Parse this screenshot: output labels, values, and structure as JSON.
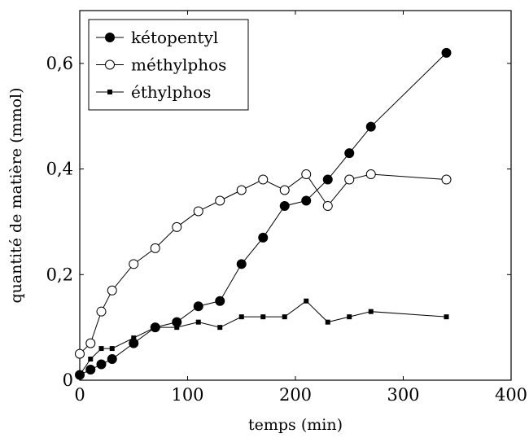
{
  "chart_data": {
    "type": "line",
    "title": "",
    "xlabel": "temps (min)",
    "ylabel": "quantité de matière (mmol)",
    "xlim": [
      0,
      400
    ],
    "ylim": [
      0,
      0.7
    ],
    "x_ticks": [
      0,
      100,
      200,
      300,
      400
    ],
    "y_ticks": [
      0,
      0.2,
      0.4,
      0.6
    ],
    "x_tick_labels": [
      "0",
      "100",
      "200",
      "300",
      "400"
    ],
    "y_tick_labels": [
      "0",
      "0,2",
      "0,4",
      "0,6"
    ],
    "grid": false,
    "legend_position": "top-left",
    "series": [
      {
        "name": "kétopentyl",
        "marker": "filled-circle",
        "color": "#000000",
        "x": [
          0,
          10,
          20,
          30,
          50,
          70,
          90,
          110,
          130,
          150,
          170,
          190,
          210,
          230,
          250,
          270,
          340
        ],
        "y": [
          0.01,
          0.02,
          0.03,
          0.04,
          0.07,
          0.1,
          0.11,
          0.14,
          0.15,
          0.22,
          0.27,
          0.33,
          0.34,
          0.38,
          0.43,
          0.48,
          0.62
        ]
      },
      {
        "name": "méthylphos",
        "marker": "open-circle",
        "color": "#000000",
        "x": [
          0,
          10,
          20,
          30,
          50,
          70,
          90,
          110,
          130,
          150,
          170,
          190,
          210,
          230,
          250,
          270,
          340
        ],
        "y": [
          0.05,
          0.07,
          0.13,
          0.17,
          0.22,
          0.25,
          0.29,
          0.32,
          0.34,
          0.36,
          0.38,
          0.36,
          0.39,
          0.33,
          0.38,
          0.39,
          0.38
        ]
      },
      {
        "name": "éthylphos",
        "marker": "filled-square",
        "color": "#000000",
        "x": [
          0,
          10,
          20,
          30,
          50,
          70,
          90,
          110,
          130,
          150,
          170,
          190,
          210,
          230,
          250,
          270,
          340
        ],
        "y": [
          0.01,
          0.04,
          0.06,
          0.06,
          0.08,
          0.1,
          0.1,
          0.11,
          0.1,
          0.12,
          0.12,
          0.12,
          0.15,
          0.11,
          0.12,
          0.13,
          0.12
        ]
      }
    ]
  }
}
